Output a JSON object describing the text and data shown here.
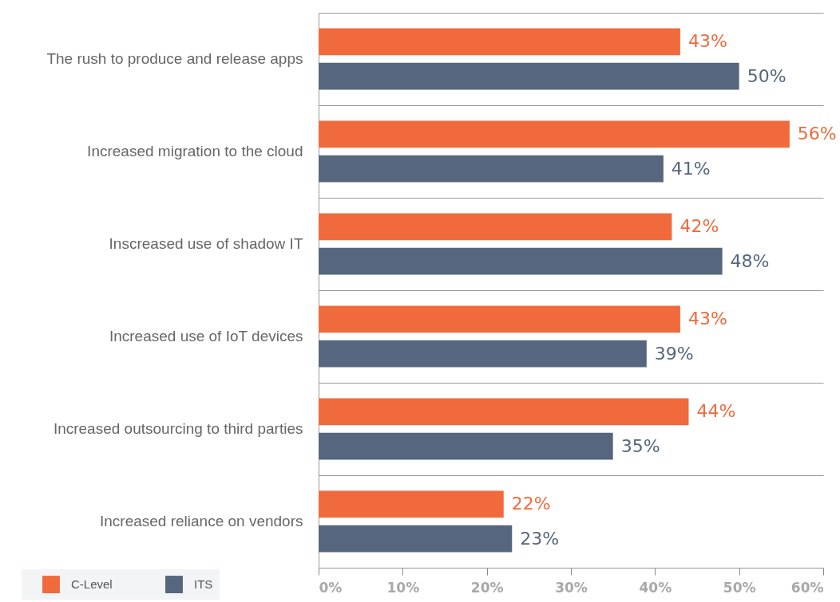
{
  "chart_data": {
    "type": "bar",
    "orientation": "horizontal",
    "categories": [
      "The rush to produce and release apps",
      "Increased migration to the cloud",
      "Inscreased use of shadow IT",
      "Increased use of IoT devices",
      "Increased outsourcing to third parties",
      "Increased reliance on vendors"
    ],
    "series": [
      {
        "name": "C-Level",
        "color": "#f06a3c",
        "values": [
          43,
          56,
          42,
          43,
          44,
          22
        ],
        "value_labels": [
          "43%",
          "56%",
          "42%",
          "43%",
          "44%",
          "22%"
        ]
      },
      {
        "name": "ITS",
        "color": "#55667e",
        "values": [
          50,
          41,
          48,
          39,
          35,
          23
        ],
        "value_labels": [
          "50%",
          "41%",
          "48%",
          "39%",
          "35%",
          "23%"
        ]
      }
    ],
    "xlim": [
      0,
      60
    ],
    "xticks": [
      {
        "value": 0,
        "label": "0%"
      },
      {
        "value": 10,
        "label": "10%"
      },
      {
        "value": 20,
        "label": "20%"
      },
      {
        "value": 30,
        "label": "30%"
      },
      {
        "value": 40,
        "label": "40%"
      },
      {
        "value": 50,
        "label": "50%"
      },
      {
        "value": 60,
        "label": "60%"
      }
    ],
    "grid": "y",
    "legend": "bottom left"
  }
}
